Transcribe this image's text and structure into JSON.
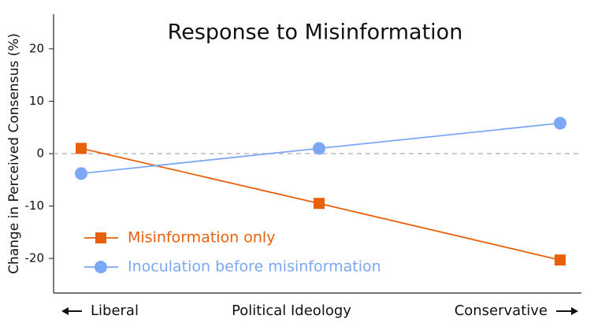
{
  "chart_data": {
    "type": "line",
    "title": "Response to Misinformation",
    "x_label": "Political Ideology",
    "y_label": "Change in Perceived Consensus (%)",
    "categories": [
      "Liberal",
      null,
      "Conservative"
    ],
    "series": [
      {
        "name": "Misinformation only",
        "color": "#e8610a",
        "marker": "square",
        "values": [
          1,
          -9.5,
          -20.3
        ]
      },
      {
        "name": "Inoculation before misinformation",
        "color": "#7ba7f5",
        "marker": "circle",
        "values": [
          -3.8,
          1,
          5.8
        ]
      }
    ],
    "ylim": [
      -26.6,
      26.6
    ],
    "yticks": [
      -20,
      -10,
      0,
      10,
      20
    ],
    "reference_line": 0,
    "legend": "lower left"
  }
}
